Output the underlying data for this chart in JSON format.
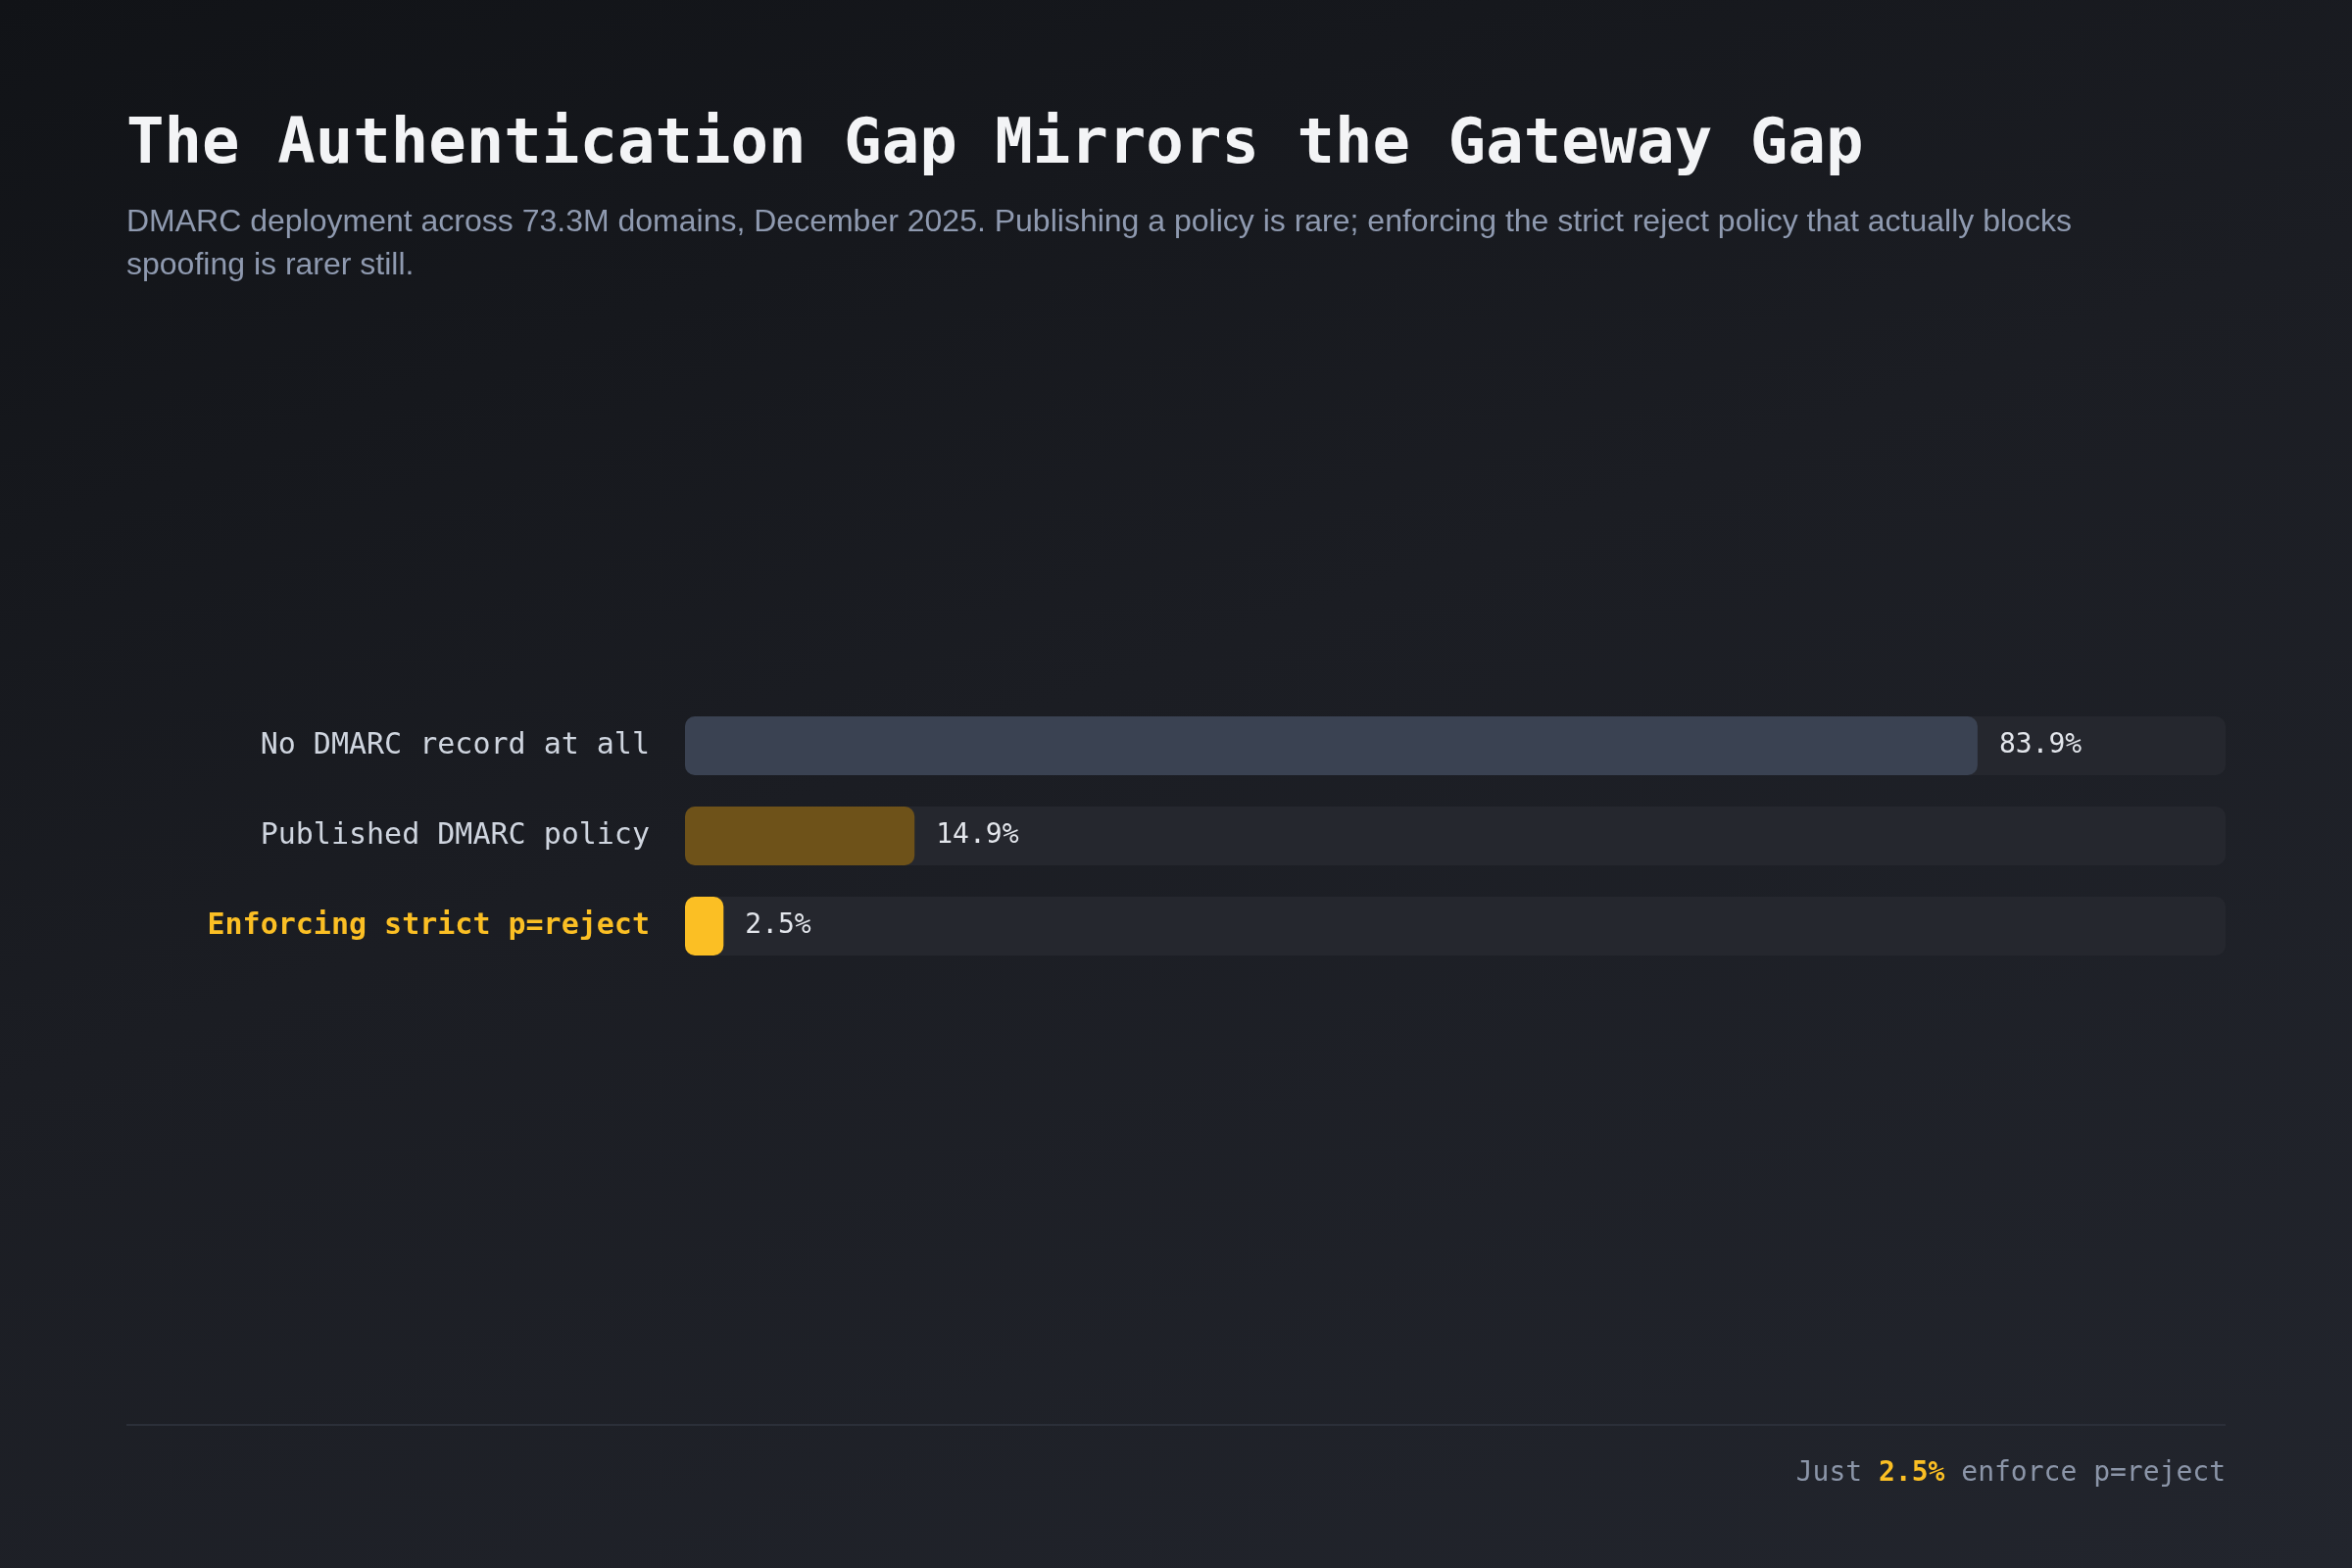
{
  "chart_data": {
    "type": "bar",
    "orientation": "horizontal",
    "title": "The Authentication Gap Mirrors the Gateway Gap",
    "subtitle": "DMARC deployment across 73.3M domains, December 2025. Publishing a policy is rare; enforcing the strict reject policy that actually blocks spoofing is rarer still.",
    "categories": [
      "No DMARC record at all",
      "Published DMARC policy",
      "Enforcing strict p=reject"
    ],
    "values": [
      83.9,
      14.9,
      2.5
    ],
    "colors": [
      "#3a4252",
      "#6e5219",
      "#fbbf24"
    ],
    "value_labels": [
      "83.9%",
      "14.9%",
      "2.5%"
    ],
    "xlim": [
      0,
      100
    ],
    "annotations": [
      "Just 2.5% enforce p=reject"
    ]
  }
}
